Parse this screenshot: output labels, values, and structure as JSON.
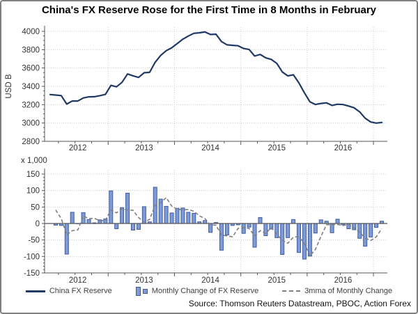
{
  "title": "China's FX Reserve Rose for the First Time in 8 Months in February",
  "source": "Source: Thomson Reuters Datastream, PBOC, Action Forex",
  "legend": [
    {
      "label": "China FX Reserve",
      "swatch": "line"
    },
    {
      "label": "Monthly Change of FX Reserve",
      "swatch": "bars"
    },
    {
      "label": "3mma of Monthly Change",
      "swatch": "dash"
    }
  ],
  "colors": {
    "line": "#1F3864",
    "bar_fill": "#7E9BD8",
    "bar_border": "#3E5C9E",
    "mma_line": "#7F7F7F",
    "grid": "#CCCCCC",
    "axis": "#555555",
    "text": "#333333",
    "frame": "#808080"
  },
  "chart_data": [
    {
      "type": "line",
      "title": "",
      "ylabel": "USD B",
      "ylim": [
        2800,
        4000
      ],
      "yticks": [
        2800,
        3000,
        3200,
        3400,
        3600,
        3800,
        4000
      ],
      "x_year_labels": [
        "2012",
        "2013",
        "2014",
        "2015",
        "2016"
      ],
      "grid": "dotted",
      "x": [
        "Feb-12",
        "Mar-12",
        "Apr-12",
        "May-12",
        "Jun-12",
        "Jul-12",
        "Aug-12",
        "Sep-12",
        "Oct-12",
        "Nov-12",
        "Dec-12",
        "Jan-13",
        "Feb-13",
        "Mar-13",
        "Apr-13",
        "May-13",
        "Jun-13",
        "Jul-13",
        "Aug-13",
        "Sep-13",
        "Oct-13",
        "Nov-13",
        "Dec-13",
        "Jan-14",
        "Feb-14",
        "Mar-14",
        "Apr-14",
        "May-14",
        "Jun-14",
        "Jul-14",
        "Aug-14",
        "Sep-14",
        "Oct-14",
        "Nov-14",
        "Dec-14",
        "Jan-15",
        "Feb-15",
        "Mar-15",
        "Apr-15",
        "May-15",
        "Jun-15",
        "Jul-15",
        "Aug-15",
        "Sep-15",
        "Oct-15",
        "Nov-15",
        "Dec-15",
        "Jan-16",
        "Feb-16",
        "Mar-16",
        "Apr-16",
        "May-16",
        "Jun-16",
        "Jul-16",
        "Aug-16",
        "Sep-16",
        "Oct-16",
        "Nov-16",
        "Dec-16",
        "Jan-17",
        "Feb-17"
      ],
      "series": [
        {
          "name": "China FX Reserve",
          "values": [
            3310,
            3305,
            3299,
            3206,
            3240,
            3240,
            3273,
            3285,
            3287,
            3298,
            3312,
            3411,
            3395,
            3443,
            3535,
            3515,
            3497,
            3548,
            3553,
            3663,
            3737,
            3789,
            3821,
            3867,
            3914,
            3948,
            3979,
            3984,
            3993,
            3966,
            3969,
            3888,
            3853,
            3847,
            3843,
            3813,
            3802,
            3730,
            3748,
            3711,
            3694,
            3651,
            3557,
            3514,
            3526,
            3438,
            3330,
            3231,
            3202,
            3213,
            3220,
            3192,
            3205,
            3201,
            3185,
            3166,
            3121,
            3052,
            3011,
            2999,
            3006
          ]
        }
      ]
    },
    {
      "type": "bar",
      "title": "",
      "unit_multiplier_label": "x 1,000",
      "ylim": [
        -150,
        150
      ],
      "yticks": [
        -150,
        -100,
        -50,
        0,
        50,
        100,
        150
      ],
      "x_year_labels": [
        "2012",
        "2013",
        "2014",
        "2015",
        "2016"
      ],
      "grid": "dotted",
      "x": [
        "Mar-12",
        "Apr-12",
        "May-12",
        "Jun-12",
        "Jul-12",
        "Aug-12",
        "Sep-12",
        "Oct-12",
        "Nov-12",
        "Dec-12",
        "Jan-13",
        "Feb-13",
        "Mar-13",
        "Apr-13",
        "May-13",
        "Jun-13",
        "Jul-13",
        "Aug-13",
        "Sep-13",
        "Oct-13",
        "Nov-13",
        "Dec-13",
        "Jan-14",
        "Feb-14",
        "Mar-14",
        "Apr-14",
        "May-14",
        "Jun-14",
        "Jul-14",
        "Aug-14",
        "Sep-14",
        "Oct-14",
        "Nov-14",
        "Dec-14",
        "Jan-15",
        "Feb-15",
        "Mar-15",
        "Apr-15",
        "May-15",
        "Jun-15",
        "Jul-15",
        "Aug-15",
        "Sep-15",
        "Oct-15",
        "Nov-15",
        "Dec-15",
        "Jan-16",
        "Feb-16",
        "Mar-16",
        "Apr-16",
        "May-16",
        "Jun-16",
        "Jul-16",
        "Aug-16",
        "Sep-16",
        "Oct-16",
        "Nov-16",
        "Dec-16",
        "Jan-17",
        "Feb-17"
      ],
      "series": [
        {
          "name": "Monthly Change of FX Reserve",
          "values": [
            -5,
            -6,
            -93,
            34,
            0,
            33,
            12,
            2,
            11,
            14,
            99,
            -16,
            48,
            92,
            -20,
            -18,
            51,
            5,
            110,
            74,
            52,
            32,
            46,
            47,
            34,
            31,
            5,
            9,
            -27,
            3,
            -81,
            -35,
            -6,
            -4,
            -30,
            -11,
            -72,
            18,
            -37,
            -17,
            -43,
            -94,
            -43,
            12,
            -88,
            -108,
            -99,
            -29,
            11,
            7,
            -28,
            13,
            -4,
            -16,
            -19,
            -45,
            -69,
            -41,
            -12,
            7
          ]
        },
        {
          "name": "3mma of Monthly Change",
          "style": "dashed",
          "derived": "3-month moving average of monthly change",
          "prior_changes": [
            72,
            56
          ]
        }
      ]
    }
  ]
}
